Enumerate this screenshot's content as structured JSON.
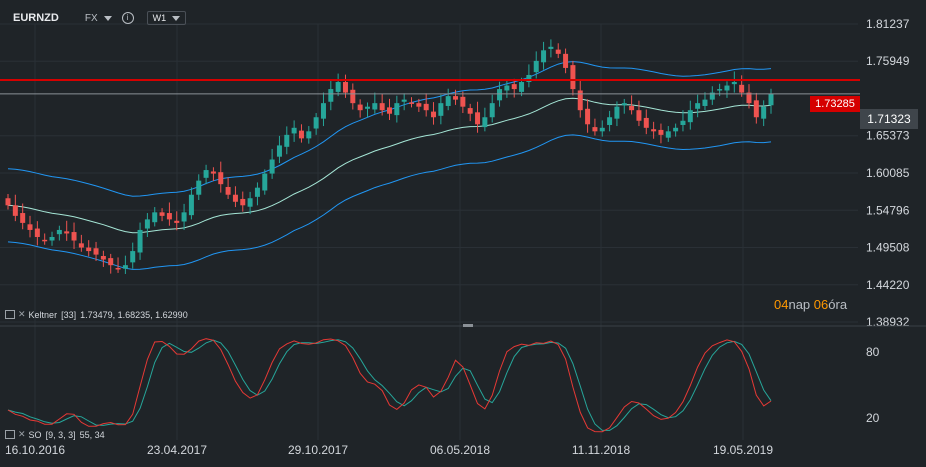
{
  "header": {
    "symbol": "EURNZD",
    "market": "FX",
    "info_icon": "info-icon",
    "timeframe": "W1"
  },
  "indicators": {
    "keltner": {
      "name": "Keltner",
      "params": "[33]",
      "values": "1.73479,  1.68235,  1.62990"
    },
    "stochastic": {
      "name": "SO",
      "params": "[9, 3, 3]",
      "levels": "55, 34"
    }
  },
  "countdown": {
    "days": "04",
    "days_unit": "nap",
    "hours": "06",
    "hours_unit": "óra"
  },
  "price_tags": {
    "horizontal_line": "1.73285",
    "current": "1.71323"
  },
  "colors": {
    "bg": "#1f2428",
    "up": "#26a69a",
    "down": "#ef5350",
    "band": "#2196f3",
    "mid": "#a5e6d6",
    "hline": "#d50000",
    "stoch_k": "#26a69a",
    "stoch_d": "#e53935"
  },
  "chart_data": {
    "type": "candlestick",
    "symbol": "EURNZD",
    "timeframe": "W1",
    "y_ticks": [
      1.81237,
      1.75949,
      1.71323,
      1.65373,
      1.60085,
      1.54796,
      1.49508,
      1.4422,
      1.38932
    ],
    "y_range": [
      1.38932,
      1.81237
    ],
    "x_ticks": [
      "16.10.2016",
      "23.04.2017",
      "29.10.2017",
      "06.05.2018",
      "11.11.2018",
      "19.05.2019"
    ],
    "horizontal_line": 1.73285,
    "current_price": 1.71323,
    "close_series_approx": [
      1.555,
      1.54,
      1.53,
      1.52,
      1.51,
      1.505,
      1.51,
      1.52,
      1.515,
      1.505,
      1.495,
      1.49,
      1.485,
      1.478,
      1.47,
      1.465,
      1.47,
      1.49,
      1.52,
      1.535,
      1.545,
      1.54,
      1.535,
      1.53,
      1.545,
      1.57,
      1.59,
      1.605,
      1.6,
      1.585,
      1.57,
      1.56,
      1.555,
      1.565,
      1.58,
      1.6,
      1.62,
      1.64,
      1.655,
      1.665,
      1.65,
      1.66,
      1.68,
      1.7,
      1.72,
      1.73,
      1.715,
      1.7,
      1.69,
      1.695,
      1.7,
      1.69,
      1.685,
      1.7,
      1.705,
      1.7,
      1.695,
      1.69,
      1.68,
      1.7,
      1.71,
      1.705,
      1.695,
      1.685,
      1.67,
      1.68,
      1.7,
      1.72,
      1.725,
      1.72,
      1.73,
      1.74,
      1.76,
      1.775,
      1.78,
      1.77,
      1.75,
      1.72,
      1.69,
      1.67,
      1.66,
      1.665,
      1.68,
      1.695,
      1.7,
      1.69,
      1.675,
      1.665,
      1.66,
      1.655,
      1.66,
      1.665,
      1.675,
      1.69,
      1.7,
      1.705,
      1.715,
      1.72,
      1.725,
      1.73,
      1.715,
      1.7,
      1.68,
      1.695,
      1.713
    ],
    "keltner_upper_last": 1.73479,
    "keltner_mid_last": 1.68235,
    "keltner_lower_last": 1.6299,
    "stochastic": {
      "params": "[9, 3, 3]",
      "levels": [
        55,
        34
      ],
      "y_ticks": [
        80,
        20
      ]
    }
  }
}
